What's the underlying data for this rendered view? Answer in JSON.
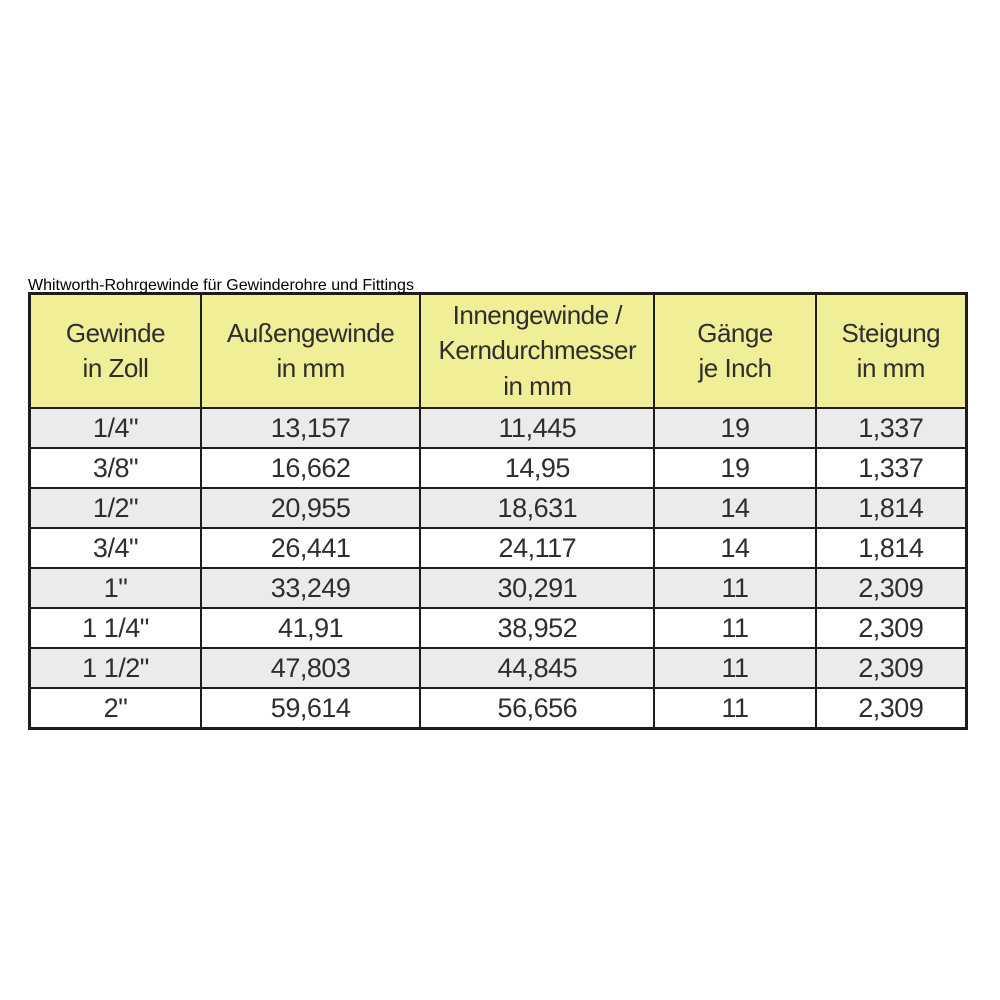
{
  "colors": {
    "title_bg": "#4e9a2a",
    "title_text": "#ffffff",
    "header_bg": "#f0ee96",
    "row_alt_bg": "#ebebeb",
    "row_bg": "#ffffff",
    "border": "#1d1d1b",
    "text": "#2e2e2e"
  },
  "table": {
    "title": "Whitworth-Rohrgewinde für Gewinderohre und Fittings",
    "headers": [
      "Gewinde\nin Zoll",
      "Außengewinde\nin mm",
      "Innengewinde /\nKerndurchmesser\nin mm",
      "Gänge\nje Inch",
      "Steigung\nin mm"
    ],
    "rows": [
      [
        "1/4\"",
        "13,157",
        "11,445",
        "19",
        "1,337"
      ],
      [
        "3/8\"",
        "16,662",
        "14,95",
        "19",
        "1,337"
      ],
      [
        "1/2\"",
        "20,955",
        "18,631",
        "14",
        "1,814"
      ],
      [
        "3/4\"",
        "26,441",
        "24,117",
        "14",
        "1,814"
      ],
      [
        "1\"",
        "33,249",
        "30,291",
        "11",
        "2,309"
      ],
      [
        "1 1/4\"",
        "41,91",
        "38,952",
        "11",
        "2,309"
      ],
      [
        "1 1/2\"",
        "47,803",
        "44,845",
        "11",
        "2,309"
      ],
      [
        "2\"",
        "59,614",
        "56,656",
        "11",
        "2,309"
      ]
    ]
  }
}
